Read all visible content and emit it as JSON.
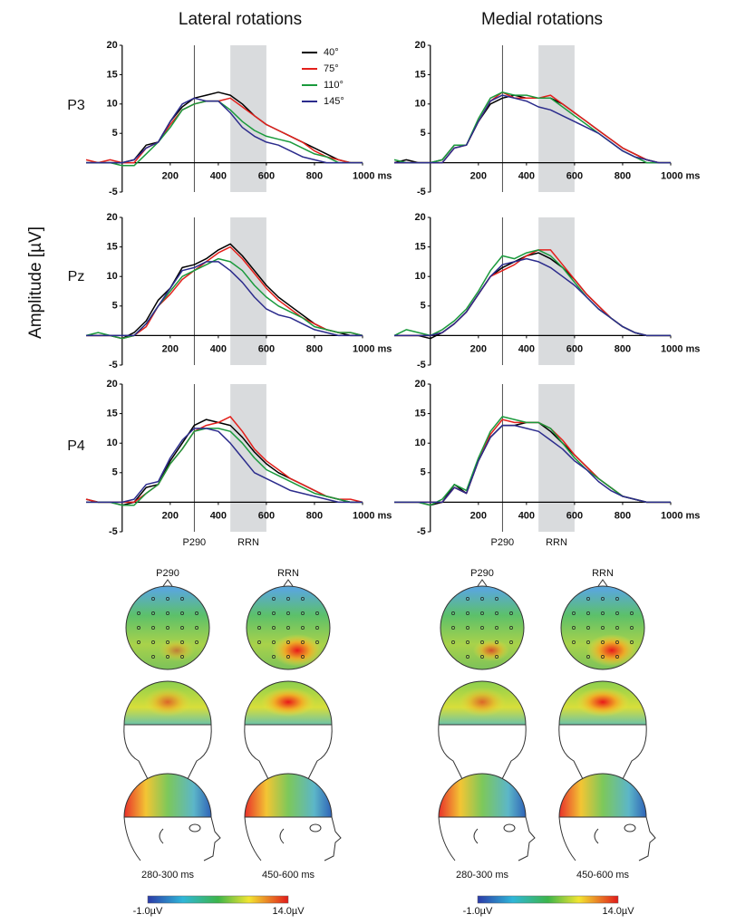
{
  "column_titles": [
    "Lateral rotations",
    "Medial rotations"
  ],
  "row_labels": [
    "P3",
    "Pz",
    "P4"
  ],
  "y_label": "Amplitude [µV]",
  "chart_data": [
    {
      "type": "line",
      "legend": "top-right",
      "xlim": [
        -150,
        1000
      ],
      "ylim": [
        -5,
        20
      ],
      "xticks": [
        200,
        400,
        600,
        800,
        {
          "value": 1000,
          "label": "1000 ms"
        }
      ],
      "yticks": [
        -5,
        5,
        10,
        15,
        20
      ],
      "vline": 300,
      "span": [
        450,
        600
      ],
      "x": [
        -150,
        -100,
        -50,
        0,
        50,
        100,
        150,
        200,
        250,
        300,
        350,
        400,
        450,
        500,
        550,
        600,
        650,
        700,
        750,
        800,
        850,
        900,
        950,
        1000
      ],
      "series": [
        {
          "name": "40°",
          "color": "#000000",
          "values": [
            0,
            0,
            0,
            0,
            0.5,
            3,
            3.5,
            7,
            9.5,
            11,
            11.5,
            12,
            11.5,
            10,
            8,
            6.5,
            5.5,
            4.5,
            3.5,
            2.5,
            1.5,
            0.5,
            0,
            0
          ]
        },
        {
          "name": "75°",
          "color": "#e3201b",
          "values": [
            0.5,
            0,
            0.5,
            0,
            0,
            2.5,
            3.5,
            6.5,
            9,
            10,
            10.5,
            10.5,
            11,
            9.5,
            8,
            6.5,
            5.5,
            4.5,
            3.5,
            2,
            1,
            0.5,
            0,
            0
          ]
        },
        {
          "name": "110°",
          "color": "#1a9a3c",
          "values": [
            0,
            0,
            0,
            -0.5,
            -0.5,
            1.5,
            3.5,
            6,
            9,
            10,
            10.5,
            10.5,
            9,
            7,
            5.5,
            4.5,
            4,
            3.5,
            2.5,
            1.5,
            1,
            0,
            0,
            0
          ]
        },
        {
          "name": "145°",
          "color": "#2b2b8c",
          "values": [
            0,
            0,
            0,
            0,
            0.5,
            2.5,
            3.5,
            7,
            10,
            11,
            10.5,
            10.5,
            8.5,
            6,
            4.5,
            3.5,
            3,
            2,
            1,
            0.5,
            0,
            0,
            0,
            0
          ]
        }
      ]
    },
    {
      "type": "line",
      "xlim": [
        -150,
        1000
      ],
      "ylim": [
        -5,
        20
      ],
      "xticks": [
        200,
        400,
        600,
        800,
        {
          "value": 1000,
          "label": "1000 ms"
        }
      ],
      "yticks": [
        -5,
        5,
        10,
        15,
        20
      ],
      "vline": 300,
      "span": [
        450,
        600
      ],
      "x": [
        -150,
        -100,
        -50,
        0,
        50,
        100,
        150,
        200,
        250,
        300,
        350,
        400,
        450,
        500,
        550,
        600,
        650,
        700,
        750,
        800,
        850,
        900,
        950,
        1000
      ],
      "series": [
        {
          "color": "#000000",
          "values": [
            0,
            0.5,
            0,
            0,
            0.5,
            3,
            3,
            7,
            10,
            11,
            11.5,
            11,
            11,
            11,
            10,
            8.5,
            7,
            5.5,
            4,
            2.5,
            1.5,
            0.5,
            0,
            0
          ]
        },
        {
          "color": "#e3201b",
          "values": [
            0,
            0,
            0,
            0,
            0,
            2.5,
            3,
            7,
            10.5,
            12,
            11,
            11,
            11,
            11.5,
            10,
            8.5,
            7,
            5.5,
            4,
            2.5,
            1.5,
            0.5,
            0,
            0
          ]
        },
        {
          "color": "#1a9a3c",
          "values": [
            0.5,
            0,
            0,
            0,
            0.5,
            3,
            3,
            7.5,
            11,
            12,
            11.5,
            11.5,
            11,
            11,
            9.5,
            8,
            6.5,
            5,
            3.5,
            2,
            1,
            0,
            0,
            0
          ]
        },
        {
          "color": "#2b2b8c",
          "values": [
            0,
            0,
            0,
            0,
            0,
            2.5,
            3,
            7,
            10.5,
            11.5,
            11,
            10.5,
            9.5,
            9,
            8,
            7,
            6,
            5,
            3.5,
            2,
            1,
            0.5,
            0,
            0
          ]
        }
      ]
    },
    {
      "type": "line",
      "xlim": [
        -150,
        1000
      ],
      "ylim": [
        -5,
        20
      ],
      "xticks": [
        200,
        400,
        600,
        800,
        {
          "value": 1000,
          "label": "1000 ms"
        }
      ],
      "yticks": [
        -5,
        5,
        10,
        15,
        20
      ],
      "vline": 300,
      "span": [
        450,
        600
      ],
      "x": [
        -150,
        -100,
        -50,
        0,
        50,
        100,
        150,
        200,
        250,
        300,
        350,
        400,
        450,
        500,
        550,
        600,
        650,
        700,
        750,
        800,
        850,
        900,
        950,
        1000
      ],
      "series": [
        {
          "color": "#000000",
          "values": [
            0,
            0,
            0,
            -0.5,
            0.5,
            2.5,
            6,
            8,
            11.5,
            12,
            13,
            14.5,
            15.5,
            13.5,
            11,
            8.5,
            6.5,
            5,
            3.5,
            2,
            1,
            0.5,
            0,
            0
          ]
        },
        {
          "color": "#e3201b",
          "values": [
            0,
            0,
            0,
            -0.5,
            0,
            1.5,
            5,
            7,
            9.5,
            11,
            12.5,
            14,
            15,
            13,
            10.5,
            8,
            6,
            4.5,
            3,
            2,
            1,
            0.5,
            0.5,
            0
          ]
        },
        {
          "color": "#1a9a3c",
          "values": [
            0,
            0.5,
            0,
            -0.5,
            0,
            2,
            5,
            7.5,
            10,
            11,
            12,
            13,
            12.5,
            11,
            8.5,
            6.5,
            5,
            4,
            3,
            1.5,
            1,
            0.5,
            0.5,
            0
          ]
        },
        {
          "color": "#2b2b8c",
          "values": [
            0,
            0,
            0,
            0,
            0,
            2,
            5,
            8,
            11,
            11.5,
            12.5,
            12.5,
            11,
            9,
            6.5,
            4.5,
            3.5,
            3,
            2,
            1,
            0.5,
            0,
            0,
            0
          ]
        }
      ]
    },
    {
      "type": "line",
      "xlim": [
        -150,
        1000
      ],
      "ylim": [
        -5,
        20
      ],
      "xticks": [
        200,
        400,
        600,
        800,
        {
          "value": 1000,
          "label": "1000 ms"
        }
      ],
      "yticks": [
        -5,
        5,
        10,
        15,
        20
      ],
      "vline": 300,
      "span": [
        450,
        600
      ],
      "x": [
        -150,
        -100,
        -50,
        0,
        50,
        100,
        150,
        200,
        250,
        300,
        350,
        400,
        450,
        500,
        550,
        600,
        650,
        700,
        750,
        800,
        850,
        900,
        950,
        1000
      ],
      "series": [
        {
          "color": "#000000",
          "values": [
            0,
            0,
            0,
            -0.5,
            0.5,
            2,
            4,
            7,
            10,
            11.5,
            12.5,
            13.5,
            14,
            13,
            11.5,
            9.5,
            7,
            5,
            3,
            1.5,
            0.5,
            0,
            0,
            0
          ]
        },
        {
          "color": "#e3201b",
          "values": [
            0,
            0,
            0,
            0,
            0.5,
            2,
            4,
            7,
            10,
            11,
            12,
            13.5,
            14.5,
            14.5,
            12,
            9.5,
            7,
            5,
            3,
            1.5,
            0.5,
            0,
            0,
            0
          ]
        },
        {
          "color": "#1a9a3c",
          "values": [
            0,
            1,
            0.5,
            0,
            1,
            2.5,
            4.5,
            7.5,
            11,
            13.5,
            13,
            14,
            14.5,
            13.5,
            11.5,
            9,
            6.5,
            4.5,
            3,
            1.5,
            0.5,
            0,
            0,
            0
          ]
        },
        {
          "color": "#2b2b8c",
          "values": [
            0,
            0,
            0,
            0,
            0.5,
            2,
            4,
            7,
            10,
            12,
            12.5,
            13,
            12.5,
            11.5,
            10,
            8.5,
            6.5,
            4.5,
            3,
            1.5,
            0.5,
            0,
            0,
            0
          ]
        }
      ]
    },
    {
      "type": "line",
      "xlim": [
        -150,
        1000
      ],
      "ylim": [
        -5,
        20
      ],
      "xticks": [
        200,
        400,
        600,
        800,
        {
          "value": 1000,
          "label": "1000 ms"
        }
      ],
      "yticks": [
        -5,
        5,
        10,
        15,
        20
      ],
      "vline": 300,
      "span": [
        450,
        600
      ],
      "vline_label": "P290",
      "span_label": "RRN",
      "x": [
        -150,
        -100,
        -50,
        0,
        50,
        100,
        150,
        200,
        250,
        300,
        350,
        400,
        450,
        500,
        550,
        600,
        650,
        700,
        750,
        800,
        850,
        900,
        950,
        1000
      ],
      "series": [
        {
          "color": "#000000",
          "values": [
            0.5,
            0,
            0,
            -0.5,
            0,
            2.5,
            3,
            7,
            10,
            13,
            14,
            13.5,
            13,
            11,
            8.5,
            6.5,
            5,
            4,
            3,
            2,
            1,
            0.5,
            0,
            0
          ]
        },
        {
          "color": "#e3201b",
          "values": [
            0.5,
            0,
            0,
            0,
            0,
            1.5,
            3,
            6.5,
            9,
            12,
            13,
            13.5,
            14.5,
            12,
            9,
            7,
            5.5,
            4,
            3,
            2,
            1,
            0.5,
            0.5,
            0
          ]
        },
        {
          "color": "#1a9a3c",
          "values": [
            0,
            0,
            0,
            -0.5,
            -0.5,
            1.5,
            3,
            6.5,
            9,
            12,
            12.5,
            12.5,
            12,
            10,
            7.5,
            5.5,
            4.5,
            3.5,
            2.5,
            1.5,
            1,
            0.5,
            0,
            0
          ]
        },
        {
          "color": "#2b2b8c",
          "values": [
            0,
            0,
            0,
            0,
            0.5,
            3,
            3.5,
            7.5,
            10.5,
            12.5,
            12.5,
            12,
            10,
            7.5,
            5,
            4,
            3,
            2,
            1.5,
            1,
            0.5,
            0,
            0,
            0
          ]
        }
      ]
    },
    {
      "type": "line",
      "xlim": [
        -150,
        1000
      ],
      "ylim": [
        -5,
        20
      ],
      "xticks": [
        200,
        400,
        600,
        800,
        {
          "value": 1000,
          "label": "1000 ms"
        }
      ],
      "yticks": [
        -5,
        5,
        10,
        15,
        20
      ],
      "vline": 300,
      "span": [
        450,
        600
      ],
      "vline_label": "P290",
      "span_label": "RRN",
      "x": [
        -150,
        -100,
        -50,
        0,
        50,
        100,
        150,
        200,
        250,
        300,
        350,
        400,
        450,
        500,
        550,
        600,
        650,
        700,
        750,
        800,
        850,
        900,
        950,
        1000
      ],
      "series": [
        {
          "color": "#000000",
          "values": [
            0,
            0,
            0,
            -0.5,
            0,
            3,
            1.5,
            7,
            11,
            13,
            13,
            13.5,
            13.5,
            12,
            10,
            8,
            6,
            4,
            2.5,
            1,
            0.5,
            0,
            0,
            0
          ]
        },
        {
          "color": "#e3201b",
          "values": [
            0,
            0,
            0,
            0,
            0,
            2.5,
            1.5,
            7,
            11.5,
            14,
            13.5,
            13.5,
            13.5,
            12.5,
            10.5,
            8,
            6,
            4,
            2.5,
            1,
            0.5,
            0,
            0,
            0
          ]
        },
        {
          "color": "#1a9a3c",
          "values": [
            0,
            0,
            0,
            -0.5,
            0.5,
            3,
            2,
            7.5,
            12,
            14.5,
            14,
            13.5,
            13.5,
            12.5,
            10,
            7.5,
            5.5,
            4,
            2.5,
            1,
            0.5,
            0,
            0,
            0
          ]
        },
        {
          "color": "#2b2b8c",
          "values": [
            0,
            0,
            0,
            0,
            0,
            2.5,
            1.5,
            7,
            11,
            13,
            13,
            12.5,
            12,
            10.5,
            9,
            7,
            5.5,
            3.5,
            2,
            1,
            0.5,
            0,
            0,
            0
          ]
        }
      ]
    }
  ],
  "topomaps": {
    "columns": [
      {
        "component": "P290",
        "time": "280-300 ms"
      },
      {
        "component": "RRN",
        "time": "450-600 ms"
      },
      {
        "component": "P290",
        "time": "280-300 ms"
      },
      {
        "component": "RRN",
        "time": "450-600 ms"
      }
    ],
    "colorbars": [
      {
        "min": "-1.0µV",
        "max": "14.0µV"
      },
      {
        "min": "-1.0µV",
        "max": "14.0µV"
      }
    ]
  }
}
